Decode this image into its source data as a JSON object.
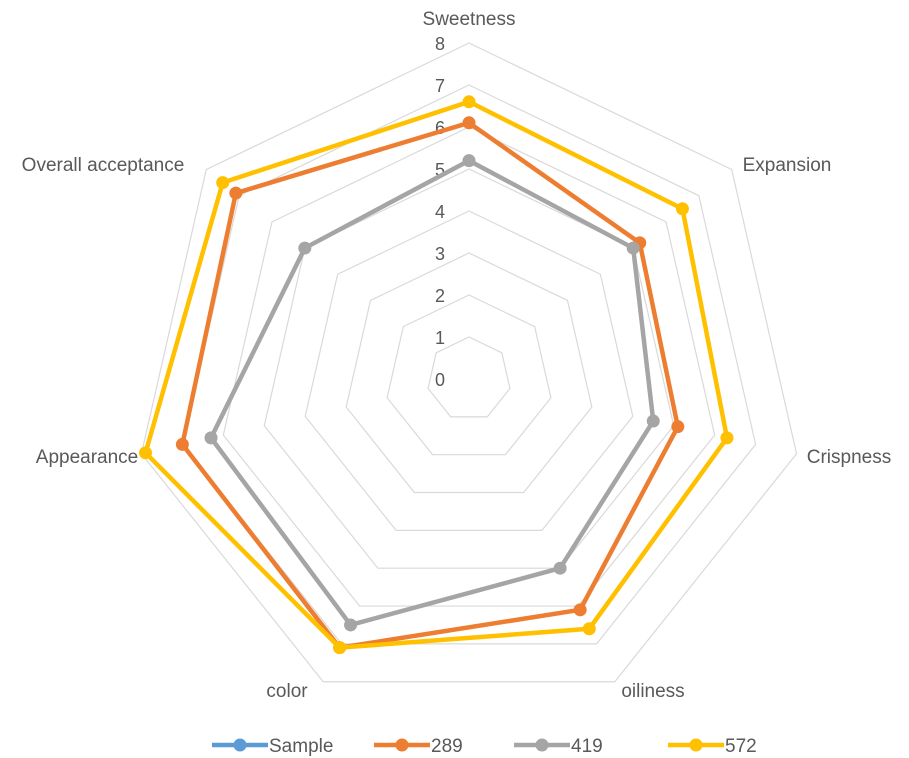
{
  "chart_data": {
    "type": "radar",
    "title": "",
    "axes": [
      "Sweetness",
      "Expansion",
      "Crispness",
      "oiliness",
      "color",
      "Appearance",
      "Overall acceptance"
    ],
    "range": [
      0,
      8
    ],
    "ticks": [
      "0",
      "1",
      "2",
      "3",
      "4",
      "5",
      "6",
      "7",
      "8"
    ],
    "grid": true,
    "legend_position": "bottom",
    "series": [
      {
        "name": "Sample",
        "color": "#5b9bd5",
        "values": []
      },
      {
        "name": "289",
        "color": "#ed7d31",
        "values": [
          6.1,
          5.2,
          5.1,
          6.1,
          7.1,
          7.0,
          7.1
        ]
      },
      {
        "name": "419",
        "color": "#a5a5a5",
        "values": [
          5.2,
          5.0,
          4.5,
          5.0,
          6.5,
          6.3,
          5.0
        ]
      },
      {
        "name": "572",
        "color": "#ffc000",
        "values": [
          6.6,
          6.5,
          6.3,
          6.6,
          7.1,
          7.9,
          7.5
        ]
      }
    ]
  }
}
